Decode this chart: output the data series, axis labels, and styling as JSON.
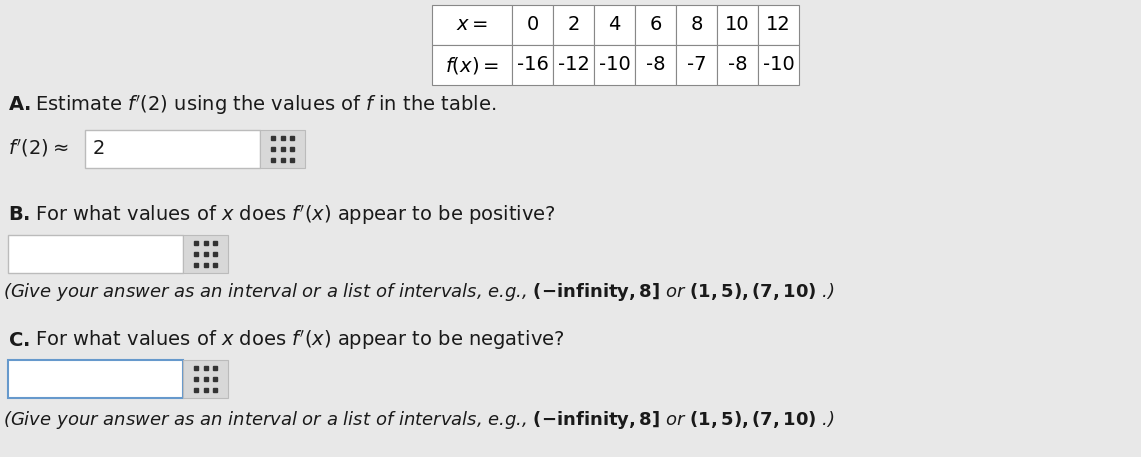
{
  "background_color": "#e8e8e8",
  "table_x_label": "$x =$",
  "table_fx_label": "$f(x) =$",
  "x_values": [
    "0",
    "2",
    "4",
    "6",
    "8",
    "10",
    "12"
  ],
  "fx_values": [
    "-16",
    "-12",
    "-10",
    "-8",
    "-7",
    "-8",
    "-10"
  ],
  "section_A_answer_value": "2",
  "text_color": "#1a1a1a",
  "input_border": "#bbbbbb",
  "input_bg": "#ffffff",
  "grid_bg": "#d8d8d8",
  "grid_dot_color": "#333333",
  "blue_border": "#6699cc",
  "table_border": "#888888",
  "font_size_table": 14,
  "font_size_body": 14,
  "font_size_hint": 13
}
